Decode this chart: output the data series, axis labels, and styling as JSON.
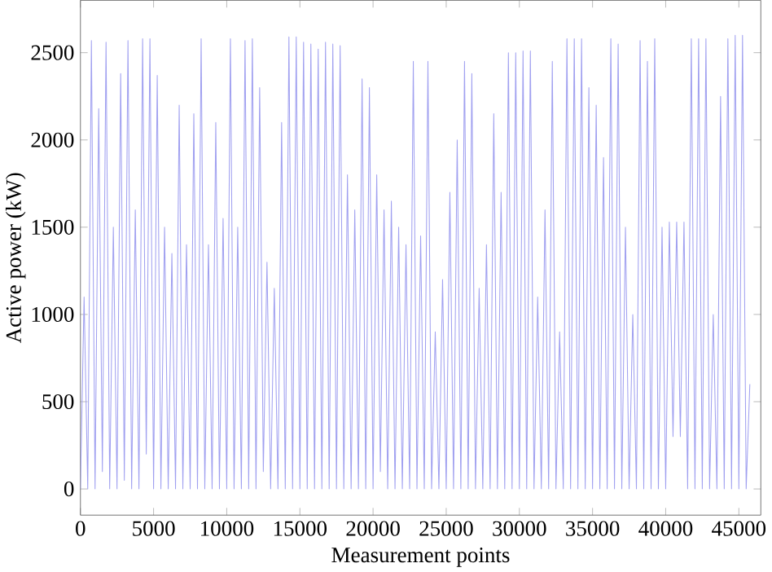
{
  "chart_data": {
    "type": "line",
    "xlabel": "Measurement points",
    "ylabel": "Active power (kW)",
    "xlim": [
      0,
      46500
    ],
    "ylim": [
      -150,
      2800
    ],
    "xticks": [
      0,
      5000,
      10000,
      15000,
      20000,
      25000,
      30000,
      35000,
      40000,
      45000
    ],
    "yticks": [
      0,
      500,
      1000,
      1500,
      2000,
      2500
    ],
    "grid": false,
    "marker": "none",
    "line_style": "solid",
    "series": [
      {
        "color": "#a0a0f0",
        "x": [
          0,
          250,
          500,
          750,
          1000,
          1250,
          1500,
          1750,
          2000,
          2250,
          2500,
          2750,
          3000,
          3250,
          3500,
          3750,
          4000,
          4250,
          4500,
          4750,
          5000,
          5250,
          5500,
          5750,
          6000,
          6250,
          6500,
          6750,
          7000,
          7250,
          7500,
          7750,
          8000,
          8250,
          8500,
          8750,
          9000,
          9250,
          9500,
          9750,
          10000,
          10250,
          10500,
          10750,
          11000,
          11250,
          11500,
          11750,
          12000,
          12250,
          12500,
          12750,
          13000,
          13250,
          13500,
          13750,
          14000,
          14250,
          14500,
          14750,
          15000,
          15250,
          15500,
          15750,
          16000,
          16250,
          16500,
          16750,
          17000,
          17250,
          17500,
          17750,
          18000,
          18250,
          18500,
          18750,
          19000,
          19250,
          19500,
          19750,
          20000,
          20250,
          20500,
          20750,
          21000,
          21250,
          21500,
          21750,
          22000,
          22250,
          22500,
          22750,
          23000,
          23250,
          23500,
          23750,
          24000,
          24250,
          24500,
          24750,
          25000,
          25250,
          25500,
          25750,
          26000,
          26250,
          26500,
          26750,
          27000,
          27250,
          27500,
          27750,
          28000,
          28250,
          28500,
          28750,
          29000,
          29250,
          29500,
          29750,
          30000,
          30250,
          30500,
          30750,
          31000,
          31250,
          31500,
          31750,
          32000,
          32250,
          32500,
          32750,
          33000,
          33250,
          33500,
          33750,
          34000,
          34250,
          34500,
          34750,
          35000,
          35250,
          35500,
          35750,
          36000,
          36250,
          36500,
          36750,
          37000,
          37250,
          37500,
          37750,
          38000,
          38250,
          38500,
          38750,
          39000,
          39250,
          39500,
          39750,
          40000,
          40250,
          40500,
          40750,
          41000,
          41250,
          41500,
          41750,
          42000,
          42250,
          42500,
          42750,
          43000,
          43250,
          43500,
          43750,
          44000,
          44250,
          44500,
          44750,
          45000,
          45250,
          45500,
          45750
        ],
        "values": [
          0,
          1100,
          0,
          2570,
          0,
          2180,
          100,
          2560,
          0,
          1500,
          0,
          2380,
          50,
          2570,
          0,
          1600,
          0,
          2580,
          200,
          2580,
          0,
          2370,
          0,
          1500,
          0,
          1350,
          0,
          2200,
          0,
          1400,
          0,
          2150,
          0,
          2580,
          0,
          1400,
          0,
          2100,
          0,
          1550,
          0,
          2580,
          0,
          1500,
          0,
          2570,
          0,
          2580,
          0,
          2300,
          100,
          1300,
          0,
          1150,
          0,
          2100,
          0,
          2590,
          0,
          2590,
          0,
          2560,
          0,
          2550,
          0,
          2520,
          0,
          2560,
          0,
          2550,
          0,
          2540,
          0,
          1800,
          0,
          1600,
          0,
          2350,
          0,
          2300,
          0,
          1800,
          100,
          1600,
          0,
          1650,
          0,
          1500,
          0,
          1400,
          0,
          2450,
          0,
          1450,
          0,
          2450,
          0,
          900,
          0,
          1200,
          0,
          1700,
          0,
          2000,
          0,
          2450,
          0,
          2380,
          0,
          1150,
          0,
          1400,
          0,
          2150,
          0,
          1700,
          0,
          2500,
          0,
          2500,
          0,
          2510,
          0,
          2510,
          0,
          1100,
          0,
          1600,
          0,
          2450,
          0,
          900,
          0,
          2580,
          0,
          2580,
          0,
          2580,
          0,
          2300,
          0,
          2200,
          0,
          1900,
          0,
          2580,
          0,
          2550,
          0,
          1500,
          0,
          1000,
          0,
          2570,
          0,
          2450,
          0,
          2580,
          0,
          1500,
          0,
          1530,
          300,
          1530,
          300,
          1530,
          0,
          2580,
          0,
          2580,
          0,
          2580,
          0,
          1000,
          0,
          2250,
          0,
          2580,
          0,
          2600,
          0,
          2600,
          0,
          600
        ]
      }
    ]
  }
}
